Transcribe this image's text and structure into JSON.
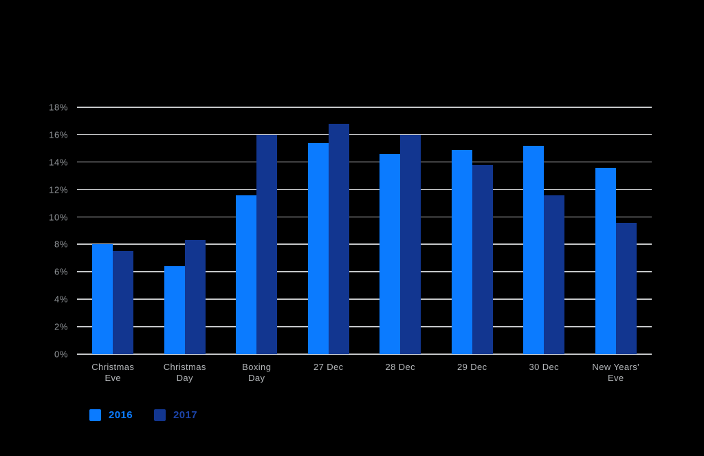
{
  "background": "#000000",
  "chart_data": {
    "type": "bar",
    "categories": [
      "Christmas Eve",
      "Christmas Day",
      "Boxing Day",
      "27 Dec",
      "28 Dec",
      "29 Dec",
      "30 Dec",
      "New Years' Eve"
    ],
    "series": [
      {
        "name": "2016",
        "color": "#0b7bff",
        "values": [
          8.0,
          6.4,
          11.6,
          15.4,
          14.6,
          14.9,
          15.2,
          13.6
        ]
      },
      {
        "name": "2017",
        "color": "#123690",
        "values": [
          7.5,
          8.3,
          16.0,
          16.8,
          16.0,
          13.8,
          11.6,
          9.6
        ]
      }
    ],
    "ylim": [
      0,
      18
    ],
    "ytick_step": 2,
    "ytick_suffix": "%",
    "grid": "horizontal-only",
    "legend_position": "bottom-left"
  },
  "legend": {
    "items": [
      {
        "label": "2016",
        "swatch_color": "#0b7bff",
        "text_color": "#0b7bff"
      },
      {
        "label": "2017",
        "swatch_color": "#123690",
        "text_color": "#1c44a9"
      }
    ]
  },
  "colors": {
    "grid_line": "#c6c8ca",
    "y_tick_label": "#94989c",
    "x_tick_label": "#b4b7ba"
  }
}
